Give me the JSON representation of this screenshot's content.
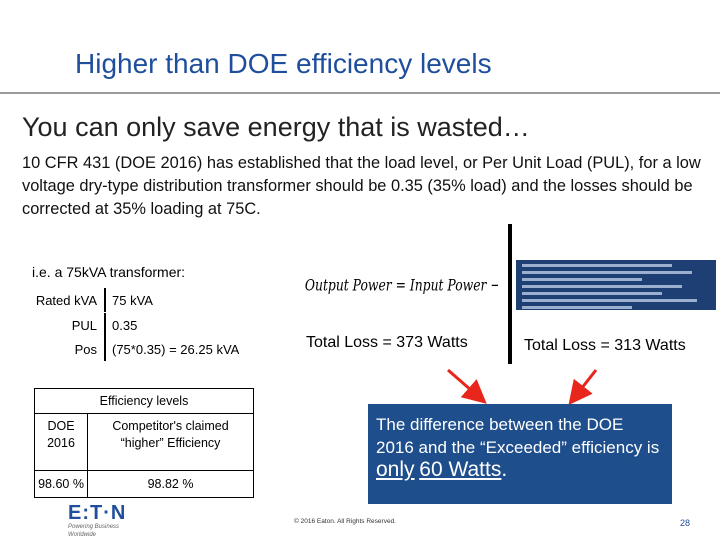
{
  "title": "Higher than DOE efficiency levels",
  "subtitle": "You can only save energy that is wasted…",
  "body": "10 CFR 431 (DOE 2016) has established that the load level, or Per Unit Load (PUL), for a low voltage dry-type distribution transformer should be 0.35 (35% load) and the losses should be corrected at 35% loading at 75C.",
  "example": {
    "label": "i.e. a 75kVA transformer:",
    "rows": [
      {
        "label": "Rated kVA",
        "value": "75 kVA"
      },
      {
        "label": "PUL",
        "value": "0.35"
      },
      {
        "label": "Pos",
        "value": "(75*0.35) = 26.25 kVA"
      }
    ]
  },
  "formula": "Output Power = Input Power − Losses",
  "total_loss_left": "Total Loss = 373 Watts",
  "total_loss_right": "Total Loss = 313 Watts",
  "table": {
    "header": "Efficiency levels",
    "col1": "DOE 2016",
    "col2": "Competitor's claimed “higher” Efficiency",
    "val1": "98.60 %",
    "val2": "98.82 %"
  },
  "callout": {
    "line1": "The difference between the DOE 2016 and the “Exceeded” efficiency is",
    "emph1": "only",
    "emph2": "60 Watts",
    "end": "."
  },
  "footer": {
    "logo": "E:T·N",
    "tagline": "Powering Business Worldwide",
    "copyright": "© 2016 Eaton. All Rights Reserved.",
    "page": "28"
  },
  "colors": {
    "accent": "#1f4e9c",
    "callout_bg": "#1f4e8c",
    "arrow": "#e8261c"
  }
}
